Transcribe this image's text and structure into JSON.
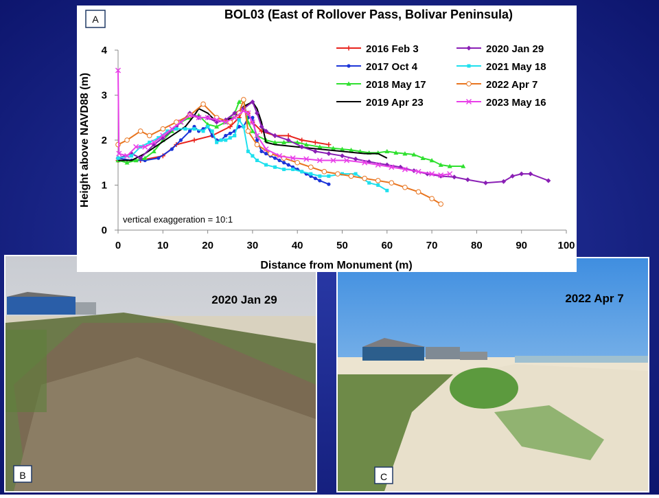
{
  "chart_data": {
    "type": "line",
    "title": "BOL03 (East of Rollover Pass, Bolivar Peninsula)",
    "panel_label": "A",
    "x_label": "Distance from Monument (m)",
    "y_label": "Height above NAVD88 (m)",
    "annotation": "vertical exaggeration = 10:1",
    "xlim": [
      0,
      100
    ],
    "xticks": [
      0,
      10,
      20,
      30,
      40,
      50,
      60,
      70,
      80,
      90,
      100
    ],
    "ylim": [
      0,
      4
    ],
    "yticks": [
      0,
      1,
      2,
      3,
      4
    ],
    "legend": "upper right",
    "series": [
      {
        "name": "2016 Feb 3",
        "color": "#e8221c",
        "marker": "plus",
        "x": [
          0,
          5,
          10,
          13,
          17,
          21,
          25,
          27,
          28,
          29,
          30,
          32,
          35,
          38,
          41,
          44,
          47
        ],
        "values": [
          1.55,
          1.55,
          1.65,
          1.9,
          2.0,
          2.1,
          2.3,
          2.5,
          2.7,
          2.6,
          2.4,
          2.2,
          2.1,
          2.1,
          2.0,
          1.95,
          1.9
        ]
      },
      {
        "name": "2017 Oct 4",
        "color": "#1c35d8",
        "marker": "dot",
        "x": [
          0,
          3,
          6,
          9,
          12,
          14,
          16,
          17,
          18,
          19,
          20,
          21,
          22,
          23,
          24,
          25,
          26,
          27,
          28,
          29,
          30,
          31,
          32,
          33,
          34,
          35,
          36,
          37,
          38,
          39,
          40,
          41,
          42,
          43,
          44,
          45,
          47
        ],
        "values": [
          1.6,
          1.55,
          1.55,
          1.6,
          1.8,
          2.0,
          2.2,
          2.3,
          2.2,
          2.25,
          2.3,
          2.1,
          2.0,
          2.0,
          2.1,
          2.15,
          2.2,
          2.3,
          2.3,
          2.5,
          2.5,
          2.0,
          1.75,
          1.7,
          1.65,
          1.6,
          1.55,
          1.5,
          1.45,
          1.4,
          1.35,
          1.3,
          1.25,
          1.2,
          1.15,
          1.1,
          1.02
        ]
      },
      {
        "name": "2018 May 17",
        "color": "#2fe02f",
        "marker": "triangle",
        "x": [
          0,
          2,
          4,
          6,
          8,
          10,
          12,
          14,
          16,
          18,
          20,
          22,
          24,
          26,
          27,
          28,
          29,
          30,
          31,
          33,
          35,
          37,
          40,
          42,
          45,
          48,
          50,
          52,
          54,
          56,
          58,
          60,
          62,
          64,
          66,
          68,
          70,
          72,
          74,
          77
        ],
        "values": [
          1.55,
          1.5,
          1.55,
          1.6,
          1.75,
          2.0,
          2.2,
          2.4,
          2.5,
          2.55,
          2.35,
          2.3,
          2.4,
          2.6,
          2.85,
          2.9,
          2.4,
          2.2,
          2.1,
          2.0,
          1.95,
          1.95,
          1.95,
          1.9,
          1.85,
          1.82,
          1.8,
          1.78,
          1.75,
          1.72,
          1.72,
          1.75,
          1.72,
          1.7,
          1.68,
          1.6,
          1.55,
          1.45,
          1.42,
          1.42
        ]
      },
      {
        "name": "2019 Apr 23",
        "color": "#000000",
        "marker": "none",
        "x": [
          0,
          3,
          6,
          9,
          12,
          15,
          17,
          18,
          20,
          22,
          24,
          26,
          28,
          30,
          31,
          32,
          33,
          35,
          40,
          45,
          50,
          55,
          58,
          60
        ],
        "values": [
          1.55,
          1.55,
          1.7,
          1.9,
          2.1,
          2.3,
          2.55,
          2.7,
          2.6,
          2.4,
          2.45,
          2.5,
          2.75,
          2.85,
          2.7,
          2.4,
          1.95,
          1.9,
          1.85,
          1.8,
          1.75,
          1.7,
          1.7,
          1.6
        ]
      },
      {
        "name": "2020 Jan 29",
        "color": "#8a1fb5",
        "marker": "diamond",
        "x": [
          0,
          3,
          5,
          8,
          10,
          13,
          16,
          18,
          20,
          22,
          24,
          26,
          28,
          30,
          31,
          32,
          33,
          35,
          38,
          41,
          44,
          47,
          50,
          53,
          56,
          60,
          63,
          66,
          69,
          72,
          75,
          78,
          82,
          86,
          88,
          90,
          92,
          96
        ],
        "values": [
          1.6,
          1.7,
          1.6,
          1.9,
          2.05,
          2.3,
          2.6,
          2.5,
          2.5,
          2.4,
          2.45,
          2.6,
          2.7,
          2.85,
          2.6,
          2.3,
          2.2,
          2.1,
          2.0,
          1.85,
          1.75,
          1.7,
          1.65,
          1.58,
          1.52,
          1.45,
          1.4,
          1.32,
          1.25,
          1.2,
          1.18,
          1.12,
          1.05,
          1.08,
          1.2,
          1.25,
          1.25,
          1.1
        ]
      },
      {
        "name": "2021 May 18",
        "color": "#1ee0ee",
        "marker": "square",
        "x": [
          0,
          3,
          5,
          7,
          9,
          11,
          13,
          15,
          17,
          19,
          20,
          21,
          22,
          23,
          24,
          25,
          26,
          27,
          28,
          29,
          30,
          31,
          33,
          35,
          37,
          39,
          41,
          43,
          45,
          47,
          50,
          53,
          56,
          58,
          60
        ],
        "values": [
          1.6,
          1.65,
          1.85,
          1.95,
          2.05,
          2.2,
          2.25,
          2.25,
          2.25,
          2.2,
          2.3,
          2.2,
          1.95,
          2.0,
          2.0,
          2.05,
          2.1,
          2.45,
          2.3,
          1.75,
          1.65,
          1.55,
          1.45,
          1.4,
          1.35,
          1.35,
          1.3,
          1.25,
          1.2,
          1.2,
          1.25,
          1.25,
          1.05,
          1.0,
          0.88
        ]
      },
      {
        "name": "2022 Apr 7",
        "color": "#e8741e",
        "marker": "circle",
        "x": [
          0,
          2,
          5,
          7,
          10,
          13,
          16,
          19,
          22,
          25,
          27,
          28,
          29,
          31,
          34,
          37,
          40,
          43,
          46,
          49,
          52,
          55,
          58,
          61,
          64,
          67,
          70,
          72
        ],
        "values": [
          1.9,
          2.0,
          2.2,
          2.1,
          2.25,
          2.4,
          2.55,
          2.8,
          2.5,
          2.4,
          2.6,
          2.9,
          2.2,
          1.9,
          1.7,
          1.6,
          1.5,
          1.4,
          1.3,
          1.25,
          1.2,
          1.15,
          1.1,
          1.05,
          0.95,
          0.85,
          0.7,
          0.58
        ]
      },
      {
        "name": "2023 May 16",
        "color": "#e83ee8",
        "marker": "x",
        "x": [
          0,
          0.2,
          2,
          4,
          6,
          8,
          10,
          12,
          14,
          16,
          18,
          20,
          22,
          24,
          26,
          28,
          29,
          30,
          31,
          33,
          36,
          39,
          42,
          45,
          48,
          51,
          55,
          58,
          61,
          64,
          67,
          70,
          72,
          74
        ],
        "values": [
          3.55,
          1.7,
          1.65,
          1.85,
          1.85,
          1.95,
          2.1,
          2.25,
          2.4,
          2.55,
          2.5,
          2.5,
          2.45,
          2.4,
          2.5,
          2.65,
          2.6,
          2.4,
          2.1,
          1.8,
          1.65,
          1.6,
          1.58,
          1.55,
          1.55,
          1.55,
          1.5,
          1.45,
          1.4,
          1.35,
          1.3,
          1.25,
          1.22,
          1.25
        ]
      }
    ]
  },
  "photos": [
    {
      "label": "B",
      "caption": "2020 Jan 29"
    },
    {
      "label": "C",
      "caption": "2022 Apr 7"
    }
  ]
}
